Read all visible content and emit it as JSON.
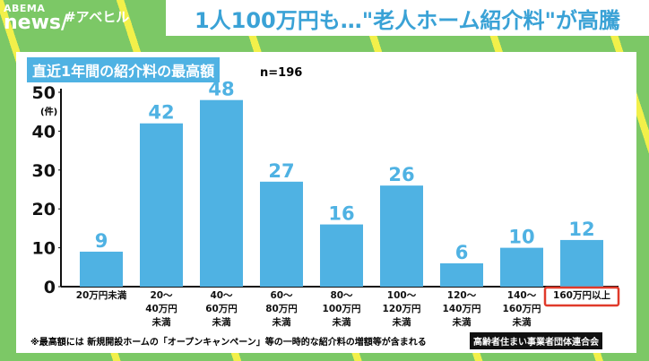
{
  "header": {
    "logo": "ABEMA news",
    "hashtag": "#アベヒル",
    "headline": "1人100万円も…\"老人ホーム紹介料\"が高騰"
  },
  "chart_data": {
    "type": "bar",
    "title": "直近1年間の紹介料の最高額",
    "subtitle": "n=196",
    "ylabel": "(件)",
    "ylim": [
      0,
      50
    ],
    "yticks": [
      0,
      10,
      20,
      30,
      40,
      50
    ],
    "categories": [
      "20万円未満",
      "20〜\n40万円\n未満",
      "40〜\n60万円\n未満",
      "60〜\n80万円\n未満",
      "80〜\n100万円\n未満",
      "100〜\n120万円\n未満",
      "120〜\n140万円\n未満",
      "140〜\n160万円\n未満",
      "160万円以上"
    ],
    "values": [
      9,
      42,
      48,
      27,
      16,
      26,
      6,
      10,
      12
    ],
    "highlighted_category": "160万円以上",
    "bar_color": "#4fb2e3",
    "highlight_color": "#e03a2a",
    "grid": false,
    "note": "※最高額には 新規開設ホームの「オープンキャンペーン」等の一時的な紹介料の増額等が含まれる",
    "source": "高齢者住まい事業者団体連合会"
  }
}
